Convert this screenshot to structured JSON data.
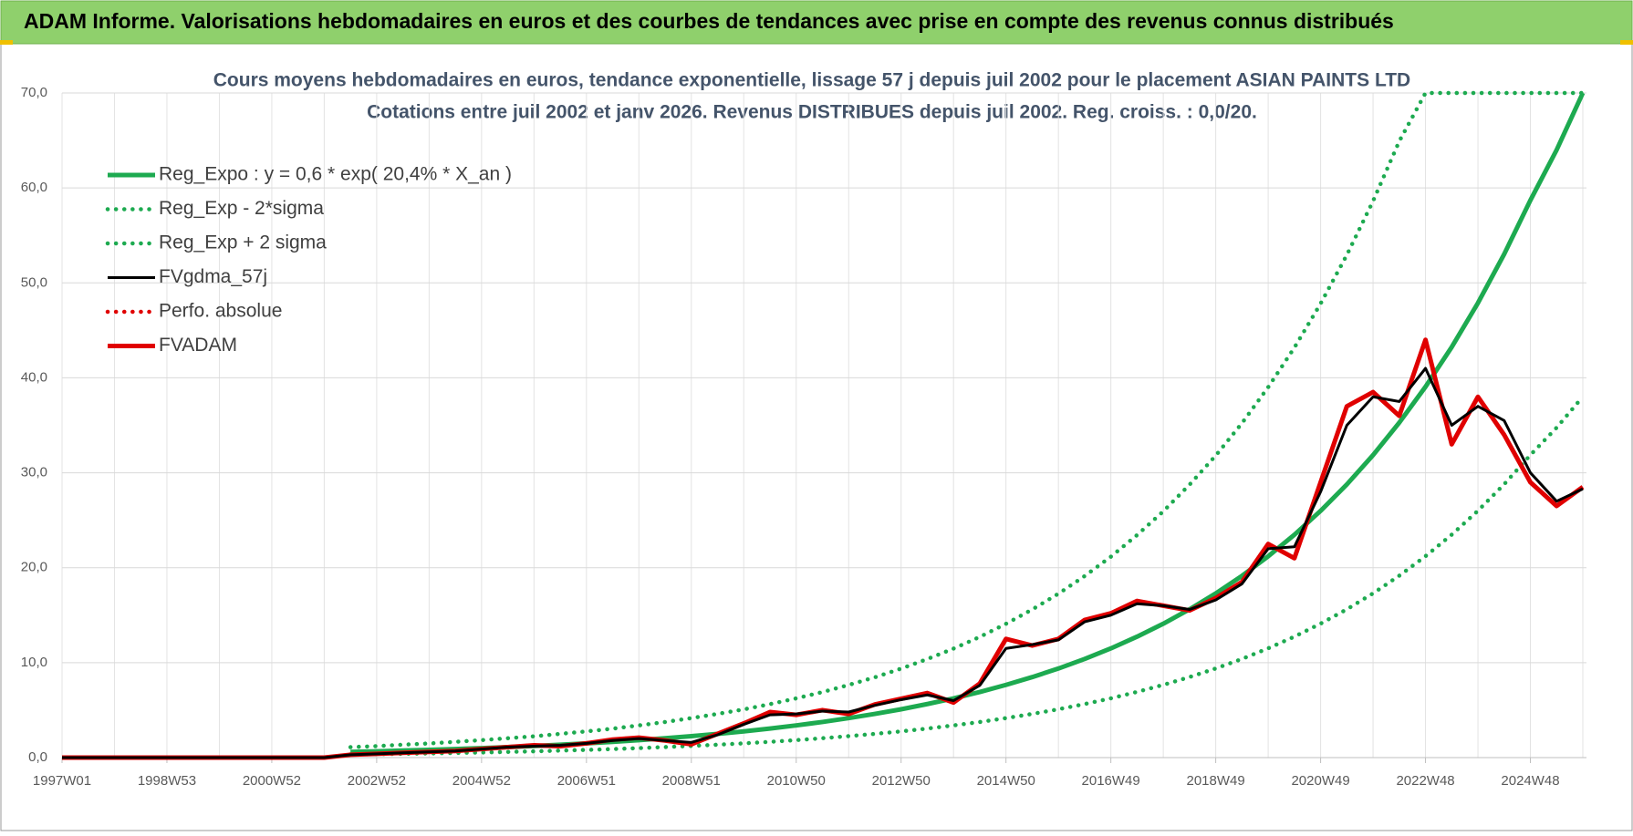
{
  "header": {
    "title": "ADAM Informe. Valorisations hebdomadaires en euros et des courbes de tendances avec prise en compte des revenus connus distribués"
  },
  "chart_data": {
    "type": "line",
    "title": "Cours moyens hebdomadaires en euros, tendance exponentielle, lissage 57 j depuis juil 2002 pour le placement ASIAN PAINTS LTD",
    "subtitle": "Cotations entre juil 2002 et janv 2026. Revenus DISTRIBUES depuis juil 2002. Reg. croiss. : 0,0/20.",
    "categories": [
      "1997W01",
      null,
      null,
      null,
      "1998W53",
      null,
      null,
      null,
      "2000W52",
      null,
      null,
      null,
      "2002W52",
      null,
      null,
      null,
      "2004W52",
      null,
      null,
      null,
      "2006W51",
      null,
      null,
      null,
      "2008W51",
      null,
      null,
      null,
      "2010W50",
      null,
      null,
      null,
      "2012W50",
      null,
      null,
      null,
      "2014W50",
      null,
      null,
      null,
      "2016W49",
      null,
      null,
      null,
      "2018W49",
      null,
      null,
      null,
      "2020W49",
      null,
      null,
      null,
      "2022W48",
      null,
      null,
      null,
      "2024W48",
      null,
      null
    ],
    "ylim": [
      0,
      70
    ],
    "yticks": [
      {
        "value": 0,
        "label": "0,0"
      },
      {
        "value": 10,
        "label": "10,0"
      },
      {
        "value": 20,
        "label": "20,0"
      },
      {
        "value": 30,
        "label": "30,0"
      },
      {
        "value": 40,
        "label": "40,0"
      },
      {
        "value": 50,
        "label": "50,0"
      },
      {
        "value": 60,
        "label": "60,0"
      },
      {
        "value": 70,
        "label": "70,0"
      }
    ],
    "grid": true,
    "legend": "top-left",
    "series": [
      {
        "name": "Reg_Expo : y = 0,6 * exp( 20,4% *  X_an )",
        "color": "#1daa50",
        "style": "solid",
        "values": [
          null,
          null,
          null,
          null,
          null,
          null,
          null,
          null,
          null,
          null,
          null,
          0.6,
          0.66,
          0.74,
          0.81,
          0.9,
          1.0,
          1.11,
          1.22,
          1.36,
          1.5,
          1.66,
          1.84,
          2.04,
          2.26,
          2.5,
          2.76,
          3.06,
          3.39,
          3.75,
          4.16,
          4.6,
          5.09,
          5.64,
          6.24,
          6.91,
          7.66,
          8.48,
          9.38,
          10.39,
          11.5,
          12.74,
          14.1,
          15.62,
          17.29,
          19.14,
          21.2,
          23.47,
          25.99,
          28.77,
          31.86,
          35.28,
          39.06,
          43.24,
          47.88,
          53.02,
          58.7,
          64.0,
          70.0
        ]
      },
      {
        "name": "Reg_Exp - 2*sigma",
        "color": "#1daa50",
        "style": "dotted",
        "values": [
          null,
          null,
          null,
          null,
          null,
          null,
          null,
          null,
          null,
          null,
          null,
          0.33,
          0.36,
          0.4,
          0.44,
          0.49,
          0.54,
          0.6,
          0.66,
          0.74,
          0.81,
          0.9,
          1.0,
          1.11,
          1.23,
          1.36,
          1.5,
          1.66,
          1.84,
          2.04,
          2.26,
          2.5,
          2.76,
          3.06,
          3.39,
          3.75,
          4.16,
          4.6,
          5.09,
          5.64,
          6.24,
          6.92,
          7.66,
          8.48,
          9.39,
          10.39,
          11.51,
          12.74,
          14.11,
          15.62,
          17.3,
          19.16,
          21.21,
          23.48,
          26.0,
          28.79,
          31.87,
          34.75,
          38.01
        ]
      },
      {
        "name": "Reg_Exp + 2 sigma",
        "color": "#1daa50",
        "style": "dotted",
        "values": [
          null,
          null,
          null,
          null,
          null,
          null,
          null,
          null,
          null,
          null,
          null,
          1.1,
          1.21,
          1.36,
          1.49,
          1.66,
          1.84,
          2.04,
          2.24,
          2.5,
          2.76,
          3.05,
          3.39,
          3.75,
          4.16,
          4.6,
          5.08,
          5.63,
          6.24,
          6.9,
          7.65,
          8.46,
          9.37,
          10.38,
          11.48,
          12.71,
          14.09,
          15.6,
          17.26,
          19.12,
          21.16,
          23.44,
          25.94,
          28.74,
          31.81,
          35.22,
          39.01,
          43.18,
          47.82,
          52.94,
          58.62,
          64.92,
          70,
          70,
          70,
          70,
          70,
          70,
          70
        ]
      },
      {
        "name": "FVgdma_57j",
        "color": "#000000",
        "style": "solid",
        "values": [
          0,
          0,
          0,
          0,
          0,
          0,
          0,
          0,
          0,
          0,
          0,
          0.3,
          0.4,
          0.5,
          0.6,
          0.7,
          0.9,
          1.1,
          1.2,
          1.3,
          1.5,
          1.8,
          2.0,
          1.8,
          1.6,
          2.4,
          3.5,
          4.5,
          4.6,
          4.9,
          4.8,
          5.5,
          6.1,
          6.6,
          6.0,
          7.6,
          11.5,
          11.9,
          12.4,
          14.3,
          15.0,
          16.2,
          16.0,
          15.6,
          16.6,
          18.3,
          22.0,
          22.2,
          28.0,
          35.0,
          38.0,
          37.5,
          41.0,
          35.0,
          37.0,
          35.5,
          30.0,
          27.0,
          28.3
        ]
      },
      {
        "name": "Perfo. absolue",
        "color": "#e00000",
        "style": "dotted",
        "values": [
          0,
          0,
          0,
          0,
          0,
          0,
          0,
          0,
          0,
          0,
          0,
          0.3,
          0.4,
          0.5,
          0.6,
          0.7,
          0.9,
          1.1,
          1.3,
          1.2,
          1.5,
          1.9,
          2.1,
          1.8,
          1.4,
          2.5,
          3.6,
          4.8,
          4.5,
          5.0,
          4.6,
          5.6,
          6.2,
          6.8,
          5.8,
          7.8,
          12.5,
          11.8,
          12.5,
          14.5,
          15.2,
          16.5,
          16.0,
          15.5,
          16.8,
          18.5,
          22.5,
          21.0,
          29.0,
          37.0,
          38.5,
          36.0,
          44.0,
          33.0,
          38.0,
          34.0,
          29.0,
          26.5,
          28.5
        ]
      },
      {
        "name": "FVADAM",
        "color": "#e00000",
        "style": "solid",
        "values": [
          0,
          0,
          0,
          0,
          0,
          0,
          0,
          0,
          0,
          0,
          0,
          0.3,
          0.4,
          0.5,
          0.6,
          0.7,
          0.9,
          1.1,
          1.3,
          1.2,
          1.5,
          1.9,
          2.1,
          1.8,
          1.4,
          2.5,
          3.6,
          4.8,
          4.5,
          5.0,
          4.6,
          5.6,
          6.2,
          6.8,
          5.8,
          7.8,
          12.5,
          11.8,
          12.5,
          14.5,
          15.2,
          16.5,
          16.0,
          15.5,
          16.8,
          18.5,
          22.5,
          21.0,
          29.0,
          37.0,
          38.5,
          36.0,
          44.0,
          33.0,
          38.0,
          34.0,
          29.0,
          26.5,
          28.5
        ]
      }
    ]
  }
}
